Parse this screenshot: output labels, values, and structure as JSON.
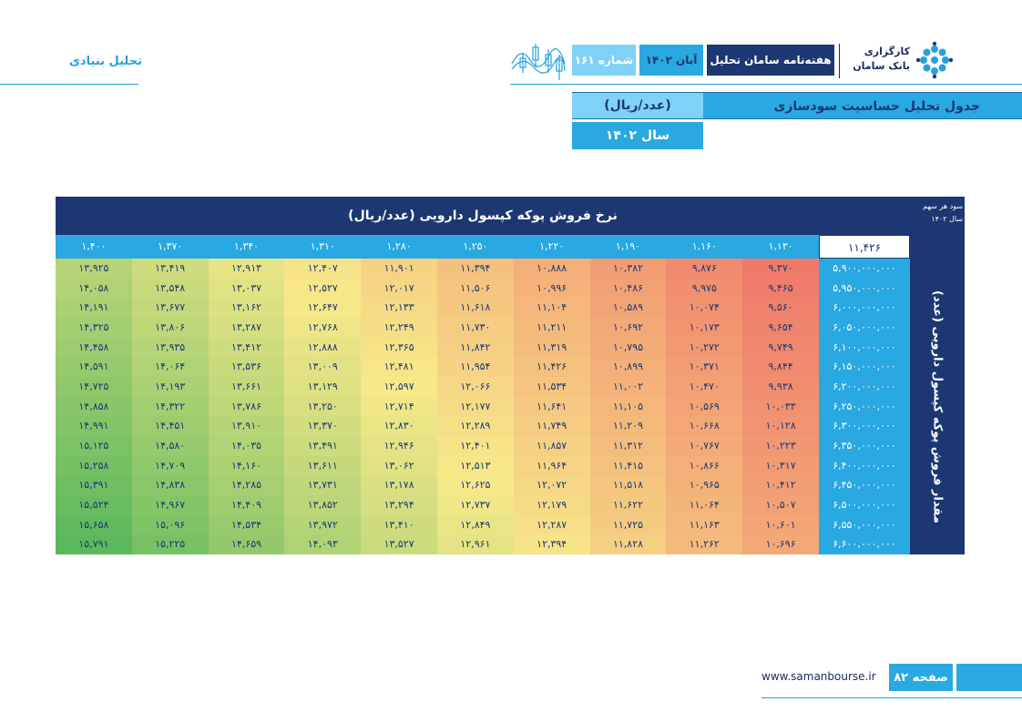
{
  "header": {
    "section_label": "تحلیل بنیادی",
    "brand_line1": "کارگزاری",
    "brand_line2": "بانک سامان",
    "weekly_title": "هفته‌نامه سامان تحلیل",
    "month": "آبان ۱۴۰۲",
    "issue": "شماره ۱۶۱"
  },
  "title": {
    "main": "جدول تحلیل حساسیت سودسازی",
    "unit": "(عدد/ریال)",
    "year": "سال ۱۴۰۲"
  },
  "table": {
    "price_header": "نرخ فروش پوکه کپسول دارویی (عدد/ریال)",
    "corner_line1": "سود هر سهم",
    "corner_line2": "سال ۱۴۰۲",
    "base_value": "۱۱,۴۲۶",
    "quantity_label": "مقدار فروش پوکه کپسول دارویی (عدد)",
    "prices": [
      "۱,۴۰۰",
      "۱,۳۷۰",
      "۱,۳۴۰",
      "۱,۳۱۰",
      "۱,۲۸۰",
      "۱,۲۵۰",
      "۱,۲۲۰",
      "۱,۱۹۰",
      "۱,۱۶۰",
      "۱,۱۳۰"
    ],
    "quantities": [
      "۵,۹۰۰,۰۰۰,۰۰۰",
      "۵,۹۵۰,۰۰۰,۰۰۰",
      "۶,۰۰۰,۰۰۰,۰۰۰",
      "۶,۰۵۰,۰۰۰,۰۰۰",
      "۶,۱۰۰,۰۰۰,۰۰۰",
      "۶,۱۵۰,۰۰۰,۰۰۰",
      "۶,۲۰۰,۰۰۰,۰۰۰",
      "۶,۲۵۰,۰۰۰,۰۰۰",
      "۶,۳۰۰,۰۰۰,۰۰۰",
      "۶,۳۵۰,۰۰۰,۰۰۰",
      "۶,۴۰۰,۰۰۰,۰۰۰",
      "۶,۴۵۰,۰۰۰,۰۰۰",
      "۶,۵۰۰,۰۰۰,۰۰۰",
      "۶,۵۵۰,۰۰۰,۰۰۰",
      "۶,۶۰۰,۰۰۰,۰۰۰"
    ],
    "rows": [
      [
        "۱۳,۹۲۵",
        "۱۳,۴۱۹",
        "۱۲,۹۱۳",
        "۱۲,۴۰۷",
        "۱۱,۹۰۱",
        "۱۱,۳۹۴",
        "۱۰,۸۸۸",
        "۱۰,۳۸۲",
        "۹,۸۷۶",
        "۹,۳۷۰"
      ],
      [
        "۱۴,۰۵۸",
        "۱۳,۵۴۸",
        "۱۳,۰۳۷",
        "۱۲,۵۲۷",
        "۱۲,۰۱۷",
        "۱۱,۵۰۶",
        "۱۰,۹۹۶",
        "۱۰,۴۸۶",
        "۹,۹۷۵",
        "۹,۴۶۵"
      ],
      [
        "۱۴,۱۹۱",
        "۱۳,۶۷۷",
        "۱۳,۱۶۲",
        "۱۲,۶۴۷",
        "۱۲,۱۳۳",
        "۱۱,۶۱۸",
        "۱۱,۱۰۴",
        "۱۰,۵۸۹",
        "۱۰,۰۷۴",
        "۹,۵۶۰"
      ],
      [
        "۱۴,۳۲۵",
        "۱۳,۸۰۶",
        "۱۳,۲۸۷",
        "۱۲,۷۶۸",
        "۱۲,۲۴۹",
        "۱۱,۷۳۰",
        "۱۱,۲۱۱",
        "۱۰,۶۹۲",
        "۱۰,۱۷۳",
        "۹,۶۵۴"
      ],
      [
        "۱۴,۴۵۸",
        "۱۳,۹۳۵",
        "۱۳,۴۱۲",
        "۱۲,۸۸۸",
        "۱۲,۳۶۵",
        "۱۱,۸۴۲",
        "۱۱,۳۱۹",
        "۱۰,۷۹۵",
        "۱۰,۲۷۲",
        "۹,۷۴۹"
      ],
      [
        "۱۴,۵۹۱",
        "۱۴,۰۶۴",
        "۱۳,۵۳۶",
        "۱۳,۰۰۹",
        "۱۲,۴۸۱",
        "۱۱,۹۵۴",
        "۱۱,۴۲۶",
        "۱۰,۸۹۹",
        "۱۰,۳۷۱",
        "۹,۸۴۴"
      ],
      [
        "۱۴,۷۲۵",
        "۱۴,۱۹۳",
        "۱۳,۶۶۱",
        "۱۳,۱۲۹",
        "۱۲,۵۹۷",
        "۱۲,۰۶۶",
        "۱۱,۵۳۴",
        "۱۱,۰۰۲",
        "۱۰,۴۷۰",
        "۹,۹۳۸"
      ],
      [
        "۱۴,۸۵۸",
        "۱۴,۳۲۲",
        "۱۳,۷۸۶",
        "۱۳,۲۵۰",
        "۱۲,۷۱۴",
        "۱۲,۱۷۷",
        "۱۱,۶۴۱",
        "۱۱,۱۰۵",
        "۱۰,۵۶۹",
        "۱۰,۰۳۳"
      ],
      [
        "۱۴,۹۹۱",
        "۱۴,۴۵۱",
        "۱۳,۹۱۰",
        "۱۳,۳۷۰",
        "۱۲,۸۳۰",
        "۱۲,۲۸۹",
        "۱۱,۷۴۹",
        "۱۱,۲۰۹",
        "۱۰,۶۶۸",
        "۱۰,۱۲۸"
      ],
      [
        "۱۵,۱۲۵",
        "۱۴,۵۸۰",
        "۱۴,۰۳۵",
        "۱۳,۴۹۱",
        "۱۲,۹۴۶",
        "۱۲,۴۰۱",
        "۱۱,۸۵۷",
        "۱۱,۳۱۲",
        "۱۰,۷۶۷",
        "۱۰,۲۲۳"
      ],
      [
        "۱۵,۲۵۸",
        "۱۴,۷۰۹",
        "۱۴,۱۶۰",
        "۱۳,۶۱۱",
        "۱۳,۰۶۲",
        "۱۲,۵۱۳",
        "۱۱,۹۶۴",
        "۱۱,۴۱۵",
        "۱۰,۸۶۶",
        "۱۰,۳۱۷"
      ],
      [
        "۱۵,۳۹۱",
        "۱۴,۸۳۸",
        "۱۴,۲۸۵",
        "۱۳,۷۳۱",
        "۱۳,۱۷۸",
        "۱۲,۶۲۵",
        "۱۲,۰۷۲",
        "۱۱,۵۱۸",
        "۱۰,۹۶۵",
        "۱۰,۴۱۲"
      ],
      [
        "۱۵,۵۲۴",
        "۱۴,۹۶۷",
        "۱۴,۴۰۹",
        "۱۳,۸۵۲",
        "۱۳,۲۹۴",
        "۱۲,۷۳۷",
        "۱۲,۱۷۹",
        "۱۱,۶۲۲",
        "۱۱,۰۶۴",
        "۱۰,۵۰۷"
      ],
      [
        "۱۵,۶۵۸",
        "۱۵,۰۹۶",
        "۱۴,۵۳۴",
        "۱۳,۹۷۲",
        "۱۳,۴۱۰",
        "۱۲,۸۴۹",
        "۱۲,۲۸۷",
        "۱۱,۷۲۵",
        "۱۱,۱۶۳",
        "۱۰,۶۰۱"
      ],
      [
        "۱۵,۷۹۱",
        "۱۵,۲۲۵",
        "۱۴,۶۵۹",
        "۱۴,۰۹۳",
        "۱۳,۵۲۷",
        "۱۲,۹۶۱",
        "۱۲,۳۹۴",
        "۱۱,۸۲۸",
        "۱۱,۲۶۲",
        "۱۰,۶۹۶"
      ]
    ]
  },
  "footer": {
    "website": "www.samanbourse.ir",
    "page": "صفحه ۸۲"
  },
  "colors": {
    "navy": "#1c3772",
    "blue": "#29a8e2",
    "light_blue": "#7fd2f5",
    "heat_low": "#f07a6a",
    "heat_mid": "#f7e98a",
    "heat_high": "#5cb85c"
  }
}
